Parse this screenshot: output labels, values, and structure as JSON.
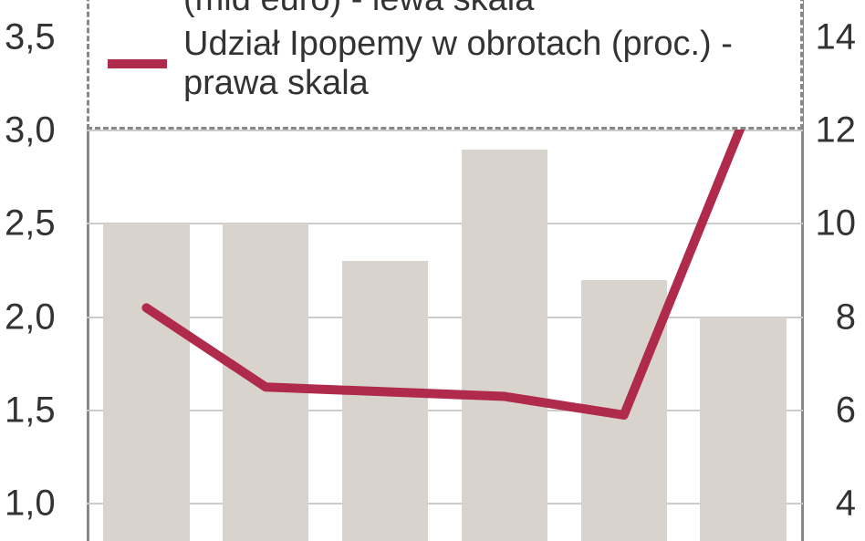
{
  "chart": {
    "type": "bar+line",
    "legend": {
      "partial_top_label": "(mld euro) - lewa skala",
      "line_label": "Udział Ipopemy w obrotach (proc.) - prawa skala",
      "line_color": "#b02a4c",
      "border_color": "#888888",
      "text_color": "#333333",
      "fontsize": 38
    },
    "left_axis": {
      "ticks": [
        1.0,
        1.5,
        2.0,
        2.5,
        3.0,
        3.5
      ],
      "tick_labels": [
        "1,0",
        "1,5",
        "2,0",
        "2,5",
        "3,0",
        "3,5"
      ],
      "ymin_visible": 0.8,
      "ymax_visible": 3.7,
      "fontsize": 40,
      "color": "#333333"
    },
    "right_axis": {
      "ticks": [
        4,
        6,
        8,
        10,
        12,
        14
      ],
      "tick_labels": [
        "4",
        "6",
        "8",
        "10",
        "12",
        "14"
      ],
      "ymin_visible": 3.2,
      "ymax_visible": 14.8,
      "fontsize": 40,
      "color": "#333333"
    },
    "bars": {
      "values": [
        2.5,
        2.5,
        2.3,
        2.9,
        2.2,
        2.0
      ],
      "color": "#d8d3cd",
      "width_frac": 0.72
    },
    "line": {
      "values": [
        8.2,
        6.5,
        6.4,
        6.3,
        5.9,
        12.2
      ],
      "color": "#b02a4c",
      "width": 10
    },
    "grid": {
      "color": "#cccccc",
      "axis_color": "#888888"
    },
    "background_color": "#ffffff"
  }
}
